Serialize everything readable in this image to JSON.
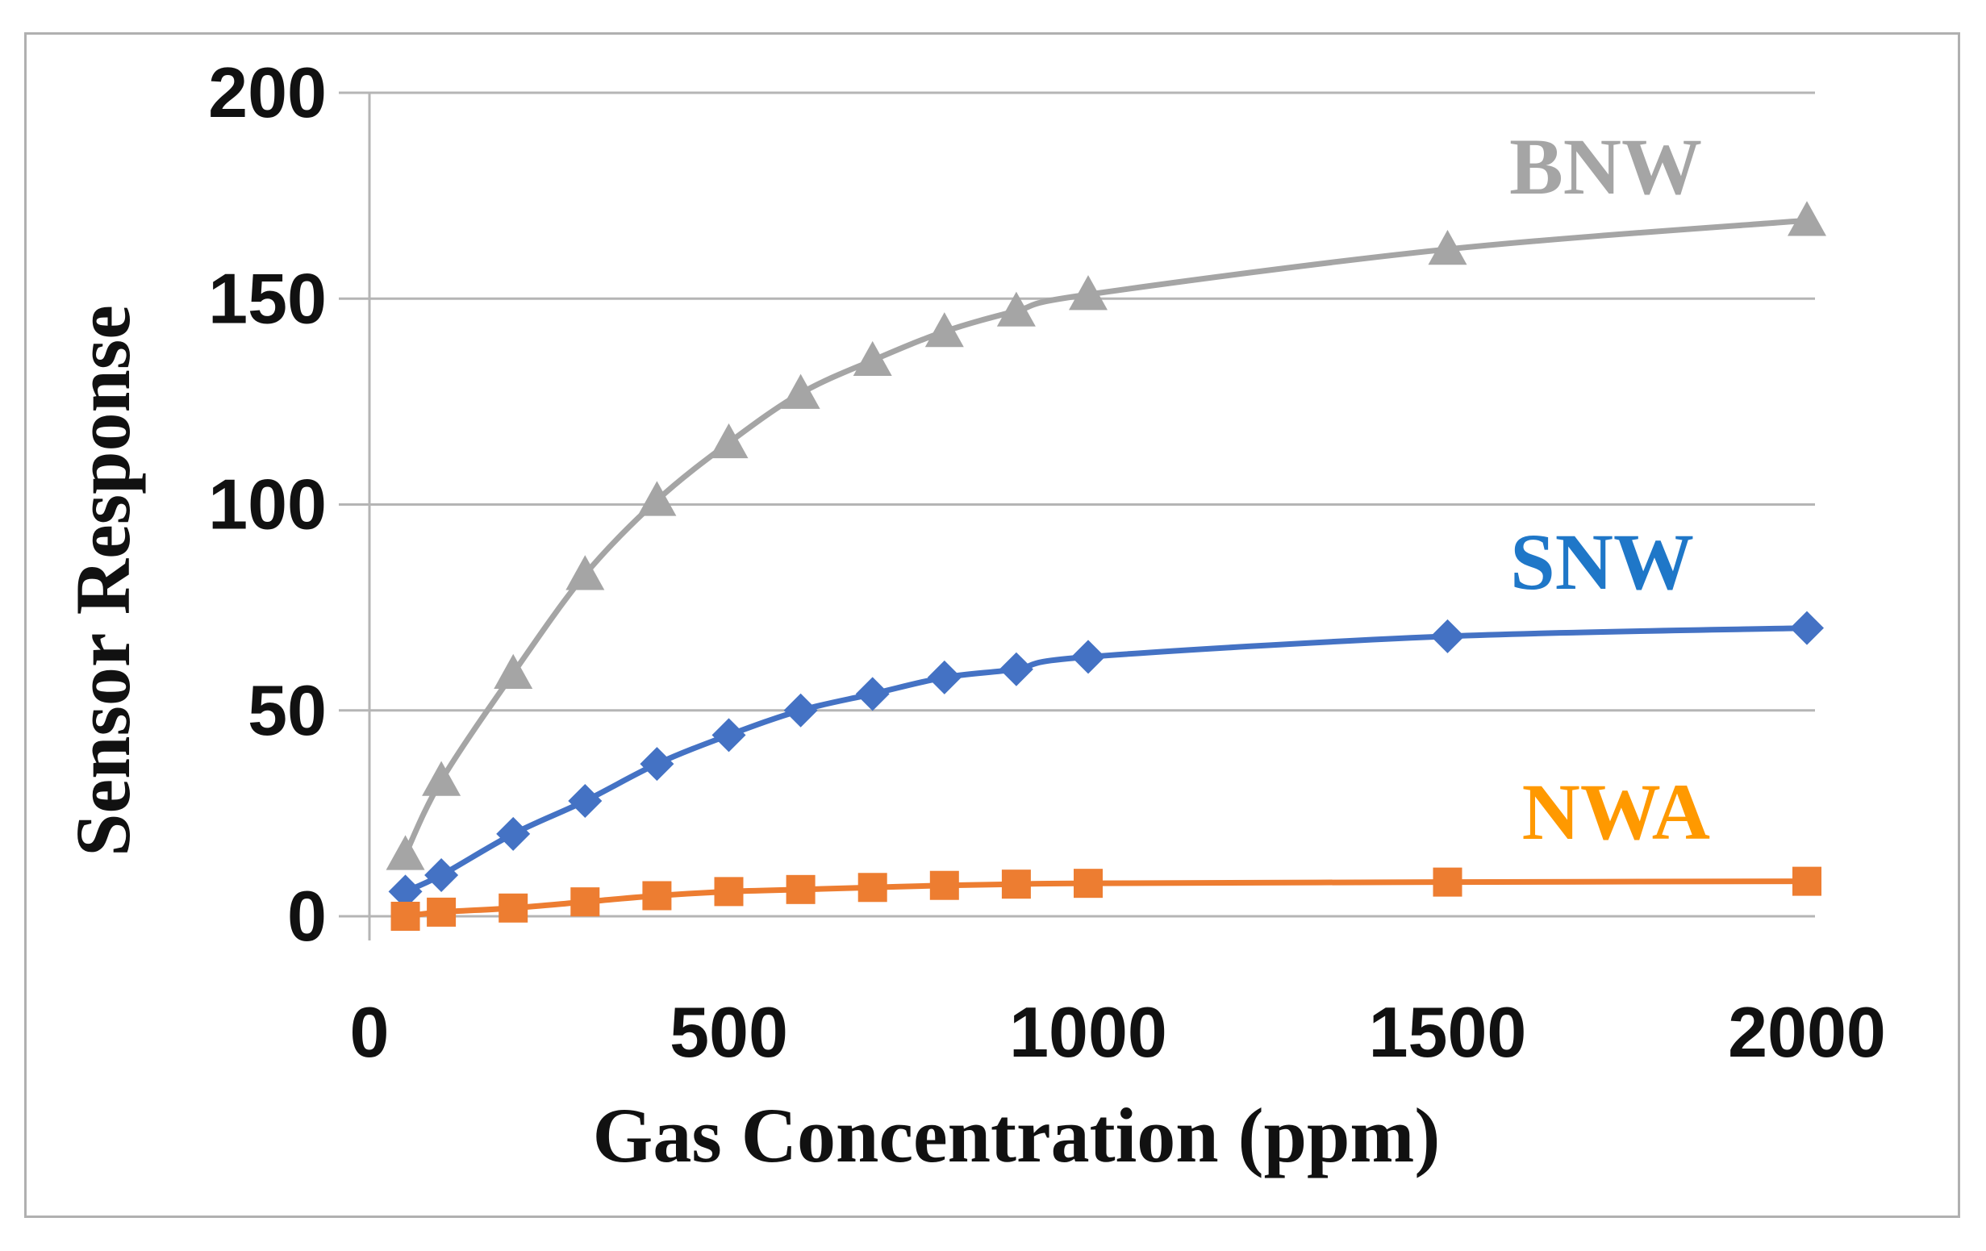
{
  "chart_data": {
    "type": "line",
    "title": "",
    "xlabel": "Gas Concentration (ppm)",
    "ylabel": "Sensor Response",
    "xlim": [
      0,
      2000
    ],
    "ylim": [
      0,
      200
    ],
    "xticks": [
      0,
      500,
      1000,
      1500,
      2000
    ],
    "yticks": [
      0,
      50,
      100,
      150,
      200
    ],
    "grid": "horizontal",
    "x": [
      50,
      100,
      200,
      300,
      400,
      500,
      600,
      700,
      800,
      900,
      1000,
      1500,
      2000
    ],
    "series": [
      {
        "name": "BNW",
        "color": "#a5a5a5",
        "marker": "triangle",
        "values": [
          15,
          33,
          59,
          83,
          101,
          115,
          127,
          135,
          142,
          147,
          151,
          162,
          169
        ]
      },
      {
        "name": "SNW",
        "color": "#4472c4",
        "label_color": "#1f77c8",
        "marker": "diamond",
        "values": [
          6,
          10,
          20,
          28,
          37,
          44,
          50,
          54,
          58,
          60,
          63,
          68,
          70
        ]
      },
      {
        "name": "NWA",
        "color": "#ed7d31",
        "label_color": "#ff9900",
        "marker": "square",
        "values": [
          0,
          1,
          2,
          3.5,
          5,
          6,
          6.5,
          7,
          7.5,
          7.8,
          8,
          8.3,
          8.5
        ]
      }
    ]
  }
}
